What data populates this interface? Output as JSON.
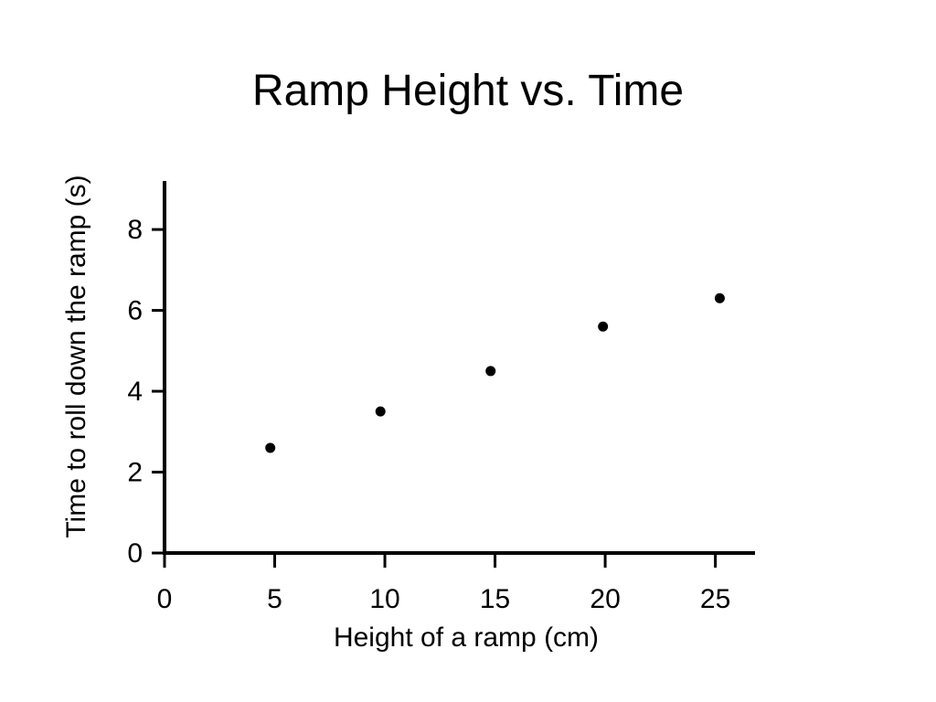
{
  "colors": {
    "background": "#ffffff",
    "ink": "#000000"
  },
  "chart_data": {
    "type": "scatter",
    "title": "Ramp Height vs. Time",
    "xlabel": "Height of a ramp (cm)",
    "ylabel": "Time to roll down the ramp (s)",
    "xlim": [
      0,
      26.8
    ],
    "ylim": [
      0,
      9.2
    ],
    "xticks": [
      0,
      5,
      10,
      15,
      20,
      25
    ],
    "yticks": [
      0,
      2,
      4,
      6,
      8
    ],
    "grid": false,
    "legend": "none",
    "points": [
      {
        "x": 4.8,
        "y": 2.6
      },
      {
        "x": 9.8,
        "y": 3.5
      },
      {
        "x": 14.8,
        "y": 4.5
      },
      {
        "x": 19.9,
        "y": 5.6
      },
      {
        "x": 25.2,
        "y": 6.3
      }
    ]
  }
}
